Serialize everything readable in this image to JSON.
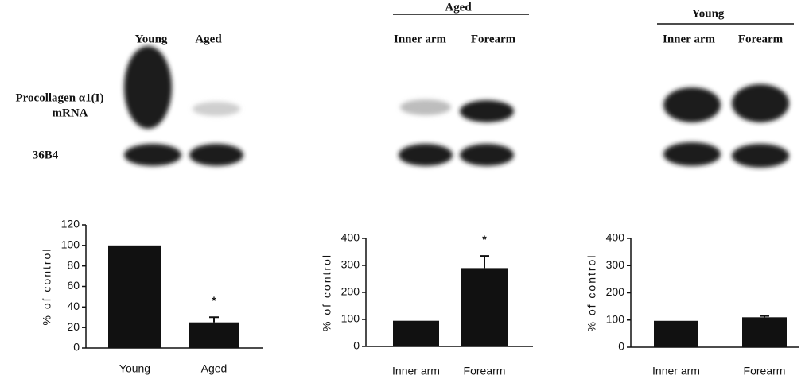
{
  "blots": [
    {
      "columns": [
        "Young",
        "Aged"
      ],
      "rows": [
        [
          "Procollagen α1(I)",
          "mRNA"
        ],
        [
          "36B4"
        ]
      ]
    },
    {
      "group": "Aged",
      "columns": [
        "Inner arm",
        "Forearm"
      ]
    },
    {
      "group": "Young",
      "columns": [
        "Inner arm",
        "Forearm"
      ]
    }
  ],
  "chart_data": [
    {
      "type": "bar",
      "categories": [
        "Young",
        "Aged"
      ],
      "values": [
        100,
        25
      ],
      "errors": [
        null,
        5
      ],
      "color": "#111111",
      "ylim": [
        0,
        120
      ],
      "yticks": [
        0,
        20,
        40,
        60,
        80,
        100,
        120
      ],
      "y_label": "% of control",
      "annotations": [
        {
          "text": "*",
          "x": "Aged"
        }
      ]
    },
    {
      "type": "bar",
      "categories": [
        "Inner arm",
        "Forearm"
      ],
      "values": [
        95,
        290
      ],
      "errors": [
        null,
        45
      ],
      "color": "#111111",
      "ylim": [
        0,
        400
      ],
      "yticks": [
        0,
        100,
        200,
        300,
        400
      ],
      "y_label": "% of control",
      "annotations": [
        {
          "text": "*",
          "x": "Forearm"
        }
      ]
    },
    {
      "type": "bar",
      "categories": [
        "Inner arm",
        "Forearm"
      ],
      "values": [
        97,
        110
      ],
      "errors": [
        null,
        5
      ],
      "color": "#111111",
      "ylim": [
        0,
        400
      ],
      "yticks": [
        0,
        100,
        200,
        300,
        400
      ],
      "y_label": "% of control"
    }
  ]
}
